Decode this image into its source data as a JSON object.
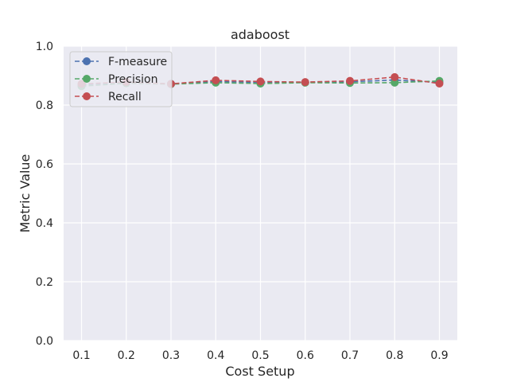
{
  "chart_data": {
    "type": "line",
    "title": "adaboost",
    "xlabel": "Cost Setup",
    "ylabel": "Metric Value",
    "x": [
      0.1,
      0.2,
      0.3,
      0.4,
      0.5,
      0.6,
      0.7,
      0.8,
      0.9
    ],
    "x_tick_labels": [
      "0.1",
      "0.2",
      "0.3",
      "0.4",
      "0.5",
      "0.6",
      "0.7",
      "0.8",
      "0.9"
    ],
    "xlim": [
      0.06,
      0.94
    ],
    "ylim": [
      0.0,
      1.0
    ],
    "y_ticks": [
      0.0,
      0.2,
      0.4,
      0.6,
      0.8,
      1.0
    ],
    "y_tick_labels": [
      "0.0",
      "0.2",
      "0.4",
      "0.6",
      "0.8",
      "1.0"
    ],
    "grid": true,
    "legend_position": "upper-left",
    "series": [
      {
        "name": "F-measure",
        "color": "#4c72b0",
        "values": [
          0.868,
          0.876,
          0.872,
          0.88,
          0.877,
          0.877,
          0.879,
          0.885,
          0.877
        ]
      },
      {
        "name": "Precision",
        "color": "#55a868",
        "values": [
          0.864,
          0.874,
          0.871,
          0.876,
          0.873,
          0.876,
          0.875,
          0.876,
          0.882
        ]
      },
      {
        "name": "Recall",
        "color": "#c44e52",
        "values": [
          0.872,
          0.878,
          0.872,
          0.884,
          0.88,
          0.878,
          0.882,
          0.895,
          0.873
        ]
      }
    ]
  }
}
